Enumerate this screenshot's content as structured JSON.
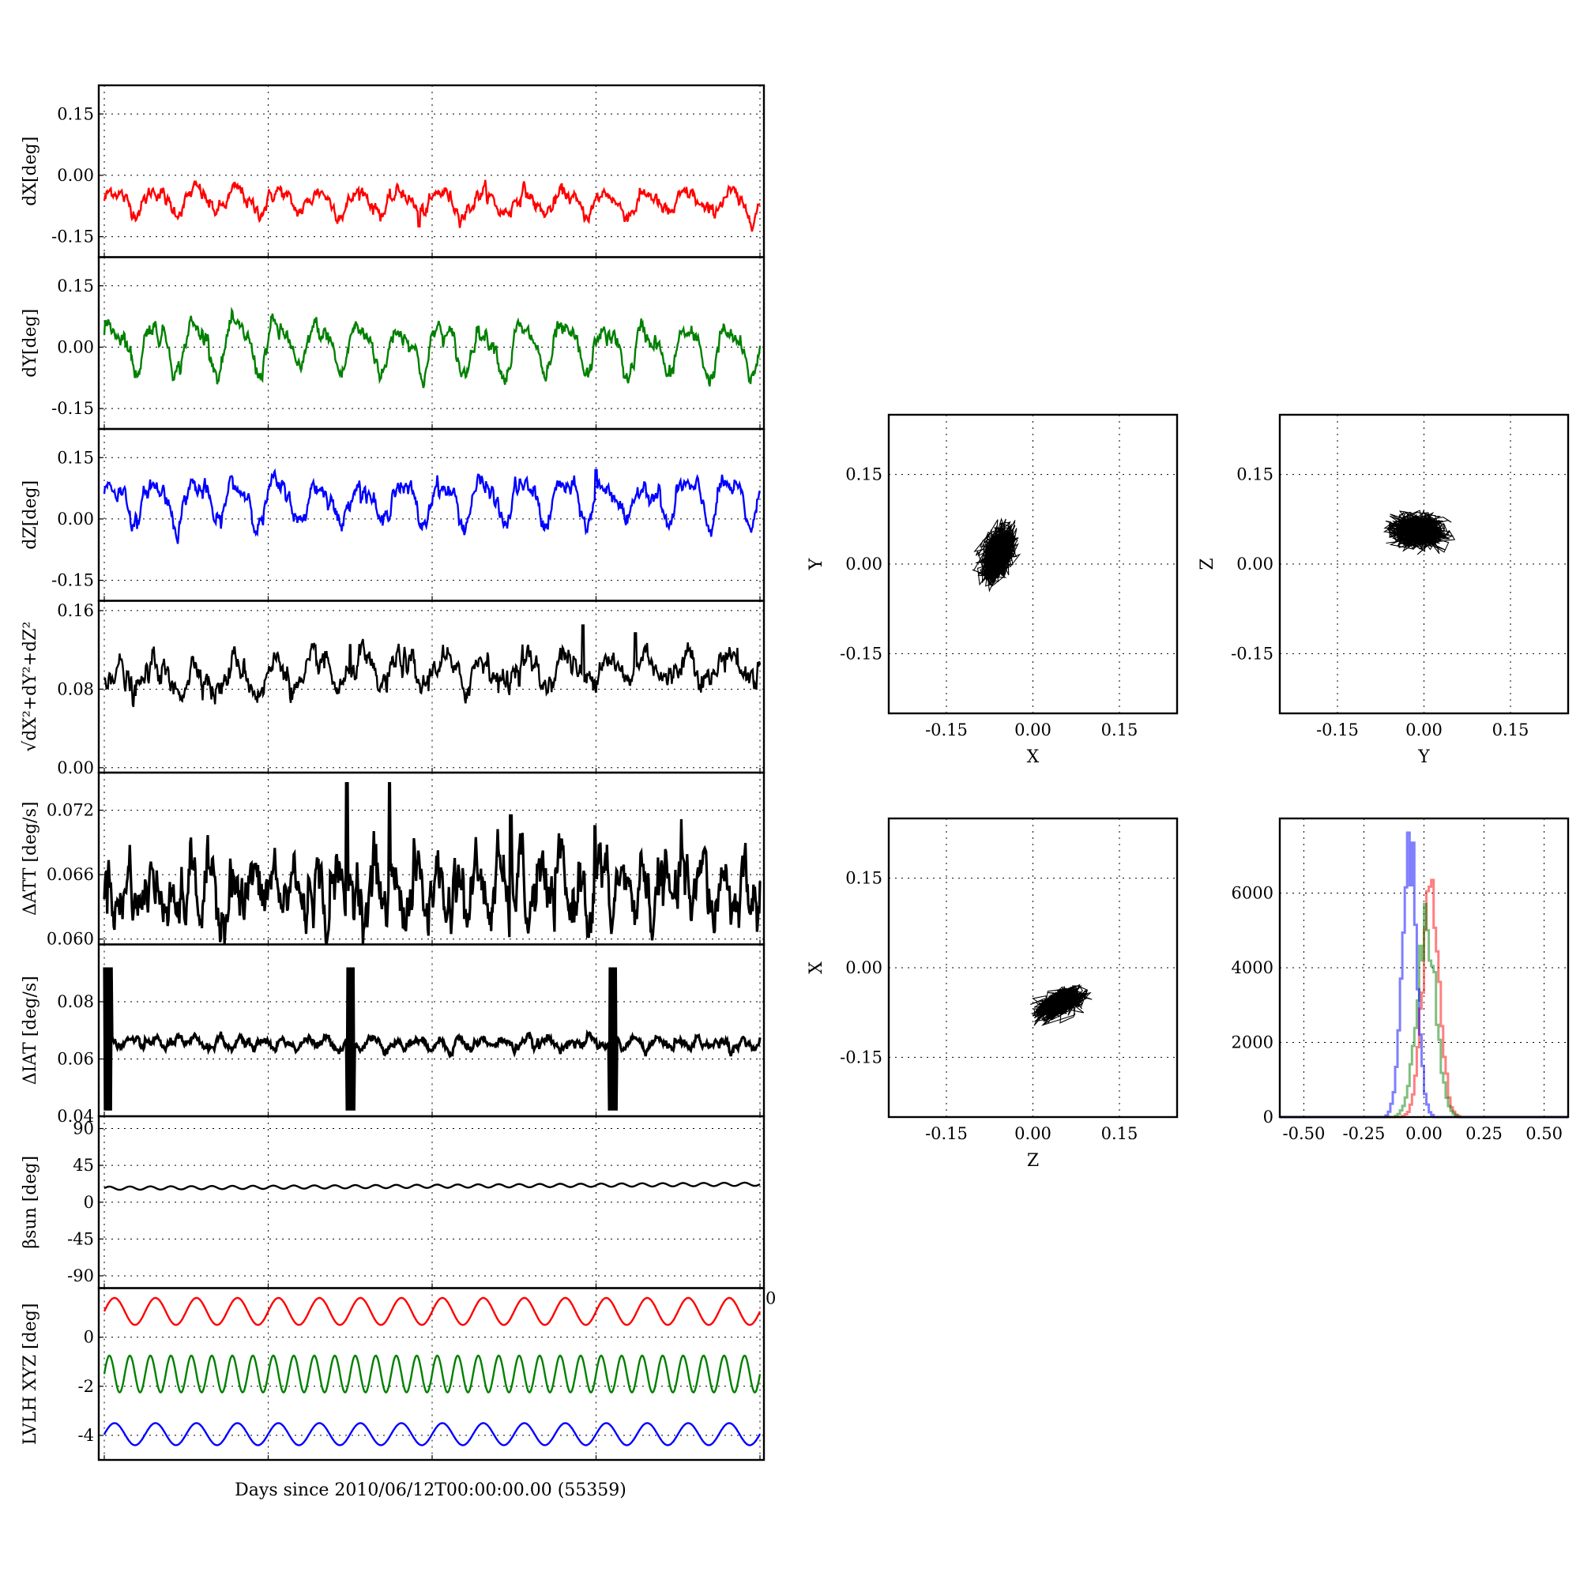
{
  "figure": {
    "time_axis_label": "Days since 2010/06/12T00:00:00.00 (55359)"
  },
  "chart_data": [
    {
      "id": "dX",
      "type": "line",
      "ylabel": "dX[deg]",
      "ylim": [
        -0.2,
        0.22
      ],
      "yticks": [
        "0.15",
        "0.00",
        "-0.15"
      ],
      "ytick_values": [
        0.15,
        0.0,
        -0.15
      ],
      "grid": true,
      "series": [
        {
          "color": "#ff0000",
          "base": -0.06,
          "amp": 0.025,
          "cycles": 16,
          "noise": 0.008,
          "trend": -0.01,
          "spikes": [
            [
              0.48,
              -0.125
            ]
          ]
        }
      ]
    },
    {
      "id": "dY",
      "type": "line",
      "ylabel": "dY[deg]",
      "ylim": [
        -0.2,
        0.22
      ],
      "yticks": [
        "0.15",
        "0.00",
        "-0.15"
      ],
      "ytick_values": [
        0.15,
        0.0,
        -0.15
      ],
      "grid": true,
      "series": [
        {
          "color": "#008000",
          "base": 0.01,
          "amp": 0.05,
          "cycles": 16,
          "noise": 0.01,
          "trend": -0.02,
          "spikes": []
        }
      ]
    },
    {
      "id": "dZ",
      "type": "line",
      "ylabel": "dZ[deg]",
      "ylim": [
        -0.2,
        0.22
      ],
      "yticks": [
        "0.15",
        "0.00",
        "-0.15"
      ],
      "ytick_values": [
        0.15,
        0.0,
        -0.15
      ],
      "grid": true,
      "series": [
        {
          "color": "#0000ff",
          "base": 0.045,
          "amp": 0.045,
          "cycles": 16,
          "noise": 0.01,
          "trend": 0.0,
          "spikes": [
            [
              0.75,
              0.12
            ]
          ]
        }
      ]
    },
    {
      "id": "dR",
      "type": "line",
      "ylabel": "√dX²+dY²+dZ²",
      "ylim": [
        -0.005,
        0.17
      ],
      "yticks": [
        "0.16",
        "0.08",
        "0.00"
      ],
      "ytick_values": [
        0.16,
        0.08,
        0.0
      ],
      "grid": true,
      "series": [
        {
          "color": "#000000",
          "base": 0.09,
          "amp": 0.015,
          "cycles": 16,
          "noise": 0.006,
          "trend": 0.015,
          "spikes": [
            [
              0.375,
              0.125
            ],
            [
              0.47,
              0.12
            ],
            [
              0.73,
              0.145
            ],
            [
              0.81,
              0.137
            ]
          ]
        }
      ]
    },
    {
      "id": "dATT",
      "type": "line",
      "ylabel": "ΔATT [deg/s]",
      "ylim": [
        0.0595,
        0.0755
      ],
      "yticks": [
        "0.072",
        "0.066",
        "0.060"
      ],
      "ytick_values": [
        0.072,
        0.066,
        0.06
      ],
      "grid": true,
      "series": [
        {
          "color": "#000000",
          "base": 0.0645,
          "amp": 0.0018,
          "cycles": 32,
          "noise": 0.0012,
          "trend": 0.0,
          "spikes": [
            [
              0.37,
              0.0745
            ],
            [
              0.435,
              0.0745
            ],
            [
              0.62,
              0.0715
            ],
            [
              0.748,
              0.0705
            ]
          ]
        }
      ]
    },
    {
      "id": "dIAT",
      "type": "line",
      "ylabel": "ΔIAT [deg/s]",
      "ylim": [
        0.04,
        0.1
      ],
      "yticks": [
        "0.08",
        "0.06",
        "0.04"
      ],
      "ytick_values": [
        0.08,
        0.06,
        0.04
      ],
      "grid": true,
      "series": [
        {
          "color": "#000000",
          "base": 0.0655,
          "amp": 0.0015,
          "cycles": 30,
          "noise": 0.0008,
          "trend": 0.0,
          "bursts": [
            0.0,
            0.37,
            0.77
          ]
        }
      ]
    },
    {
      "id": "beta",
      "type": "line",
      "ylabel": "βsun [deg]",
      "ylim": [
        -105,
        105
      ],
      "yticks": [
        "90",
        "45",
        "0",
        "-45",
        "-90"
      ],
      "ytick_values": [
        90,
        45,
        0,
        -45,
        -90
      ],
      "grid": true,
      "series": [
        {
          "color": "#000000",
          "base": 17,
          "amp": 2,
          "cycles": 32,
          "noise": 0.0,
          "trend": 5,
          "spikes": []
        }
      ]
    },
    {
      "id": "lvlh",
      "type": "line",
      "ylabel": "LVLH XYZ [deg]",
      "ylim": [
        -5.0,
        2.0
      ],
      "yticks": [
        "0",
        "-2",
        "-4"
      ],
      "ytick_values": [
        0,
        -2,
        -4
      ],
      "extra_ytick_left": "0",
      "grid": true,
      "series": [
        {
          "color": "#ff0000",
          "base": 1.05,
          "amp": 0.55,
          "cycles": 16,
          "noise": 0.0,
          "trend": 0.0,
          "spikes": []
        },
        {
          "color": "#008000",
          "base": -1.5,
          "amp": 0.75,
          "cycles": 32,
          "noise": 0.0,
          "trend": 0.0,
          "spikes": []
        },
        {
          "color": "#0000ff",
          "base": -3.95,
          "amp": 0.45,
          "cycles": 16,
          "noise": 0.0,
          "trend": 0.0,
          "spikes": []
        }
      ]
    },
    {
      "id": "scatterXY",
      "type": "scatter",
      "xlabel": "X",
      "ylabel": "Y",
      "xlim": [
        -0.25,
        0.25
      ],
      "ylim": [
        -0.25,
        0.25
      ],
      "xticks": [
        "-0.15",
        "0.00",
        "0.15"
      ],
      "yticks": [
        "0.15",
        "0.00",
        "-0.15"
      ],
      "tick_values": [
        -0.15,
        0.0,
        0.15
      ],
      "grid": true,
      "cloud": {
        "cx": -0.06,
        "cy": 0.015,
        "sx": 0.025,
        "sy": 0.04,
        "rho": 0.4
      }
    },
    {
      "id": "scatterYZ",
      "type": "scatter",
      "xlabel": "Y",
      "ylabel": "Z",
      "xlim": [
        -0.25,
        0.25
      ],
      "ylim": [
        -0.25,
        0.25
      ],
      "xticks": [
        "-0.15",
        "0.00",
        "0.15"
      ],
      "yticks": [
        "0.15",
        "0.00",
        "-0.15"
      ],
      "tick_values": [
        -0.15,
        0.0,
        0.15
      ],
      "grid": true,
      "cloud": {
        "cx": -0.01,
        "cy": 0.055,
        "sx": 0.04,
        "sy": 0.025,
        "rho": -0.1
      }
    },
    {
      "id": "scatterZX",
      "type": "scatter",
      "xlabel": "Z",
      "ylabel": "X",
      "xlim": [
        -0.25,
        0.25
      ],
      "ylim": [
        -0.25,
        0.25
      ],
      "xticks": [
        "-0.15",
        "0.00",
        "0.15"
      ],
      "yticks": [
        "0.15",
        "0.00",
        "-0.15"
      ],
      "tick_values": [
        -0.15,
        0.0,
        0.15
      ],
      "grid": true,
      "cloud": {
        "cx": 0.045,
        "cy": -0.06,
        "sx": 0.035,
        "sy": 0.022,
        "rho": 0.55
      }
    },
    {
      "id": "hist",
      "type": "area",
      "xlim": [
        -0.6,
        0.6
      ],
      "ylim": [
        0,
        8000
      ],
      "xticks": [
        "-0.50",
        "-0.25",
        "0.00",
        "0.25",
        "0.50"
      ],
      "xtick_values": [
        -0.5,
        -0.25,
        0.0,
        0.25,
        0.5
      ],
      "yticks": [
        "6000",
        "4000",
        "2000",
        "0"
      ],
      "ytick_values": [
        6000,
        4000,
        2000,
        0
      ],
      "grid": true,
      "series": [
        {
          "color": "#ff0000",
          "center": 0.03,
          "width": 0.035,
          "peak": 5800
        },
        {
          "color": "#008000",
          "center": 0.01,
          "width": 0.04,
          "peak": 5000
        },
        {
          "color": "#0000ff",
          "center": -0.06,
          "width": 0.03,
          "peak": 7300
        }
      ]
    }
  ]
}
